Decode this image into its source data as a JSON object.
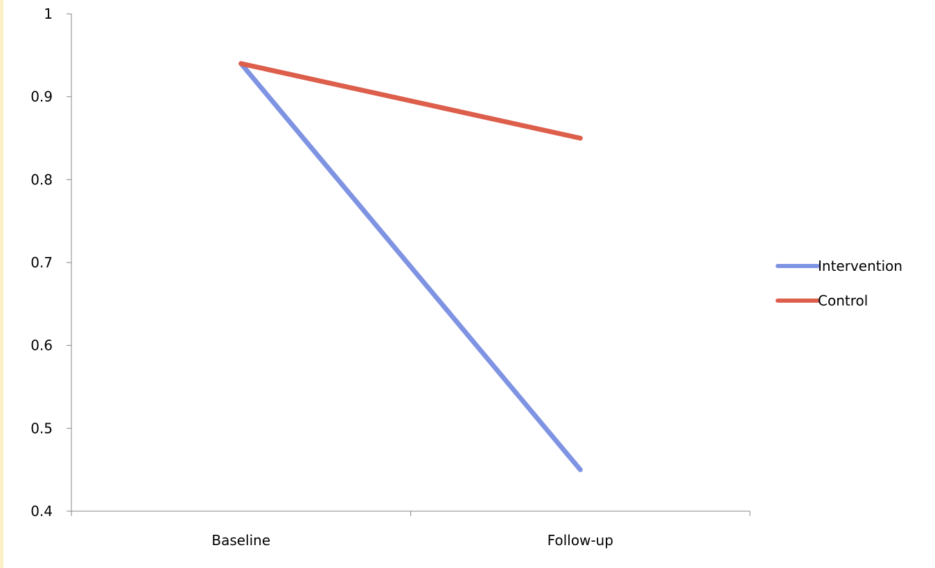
{
  "chart_data": {
    "type": "line",
    "title": "",
    "xlabel": "",
    "ylabel": "",
    "categories": [
      "Baseline",
      "Follow-up"
    ],
    "series": [
      {
        "name": "Intervention",
        "values": [
          0.94,
          0.45
        ],
        "color": "#7F93E3"
      },
      {
        "name": "Control",
        "values": [
          0.94,
          0.85
        ],
        "color": "#DC5E4B"
      }
    ],
    "ylim": [
      0.4,
      1
    ],
    "yticks": [
      "0.4",
      "0.5",
      "0.6",
      "0.7",
      "0.8",
      "0.9",
      "1"
    ],
    "grid": false,
    "legend_position": "right",
    "axis_color": "#868686",
    "edge_strip_color": "#FDEFC6"
  }
}
